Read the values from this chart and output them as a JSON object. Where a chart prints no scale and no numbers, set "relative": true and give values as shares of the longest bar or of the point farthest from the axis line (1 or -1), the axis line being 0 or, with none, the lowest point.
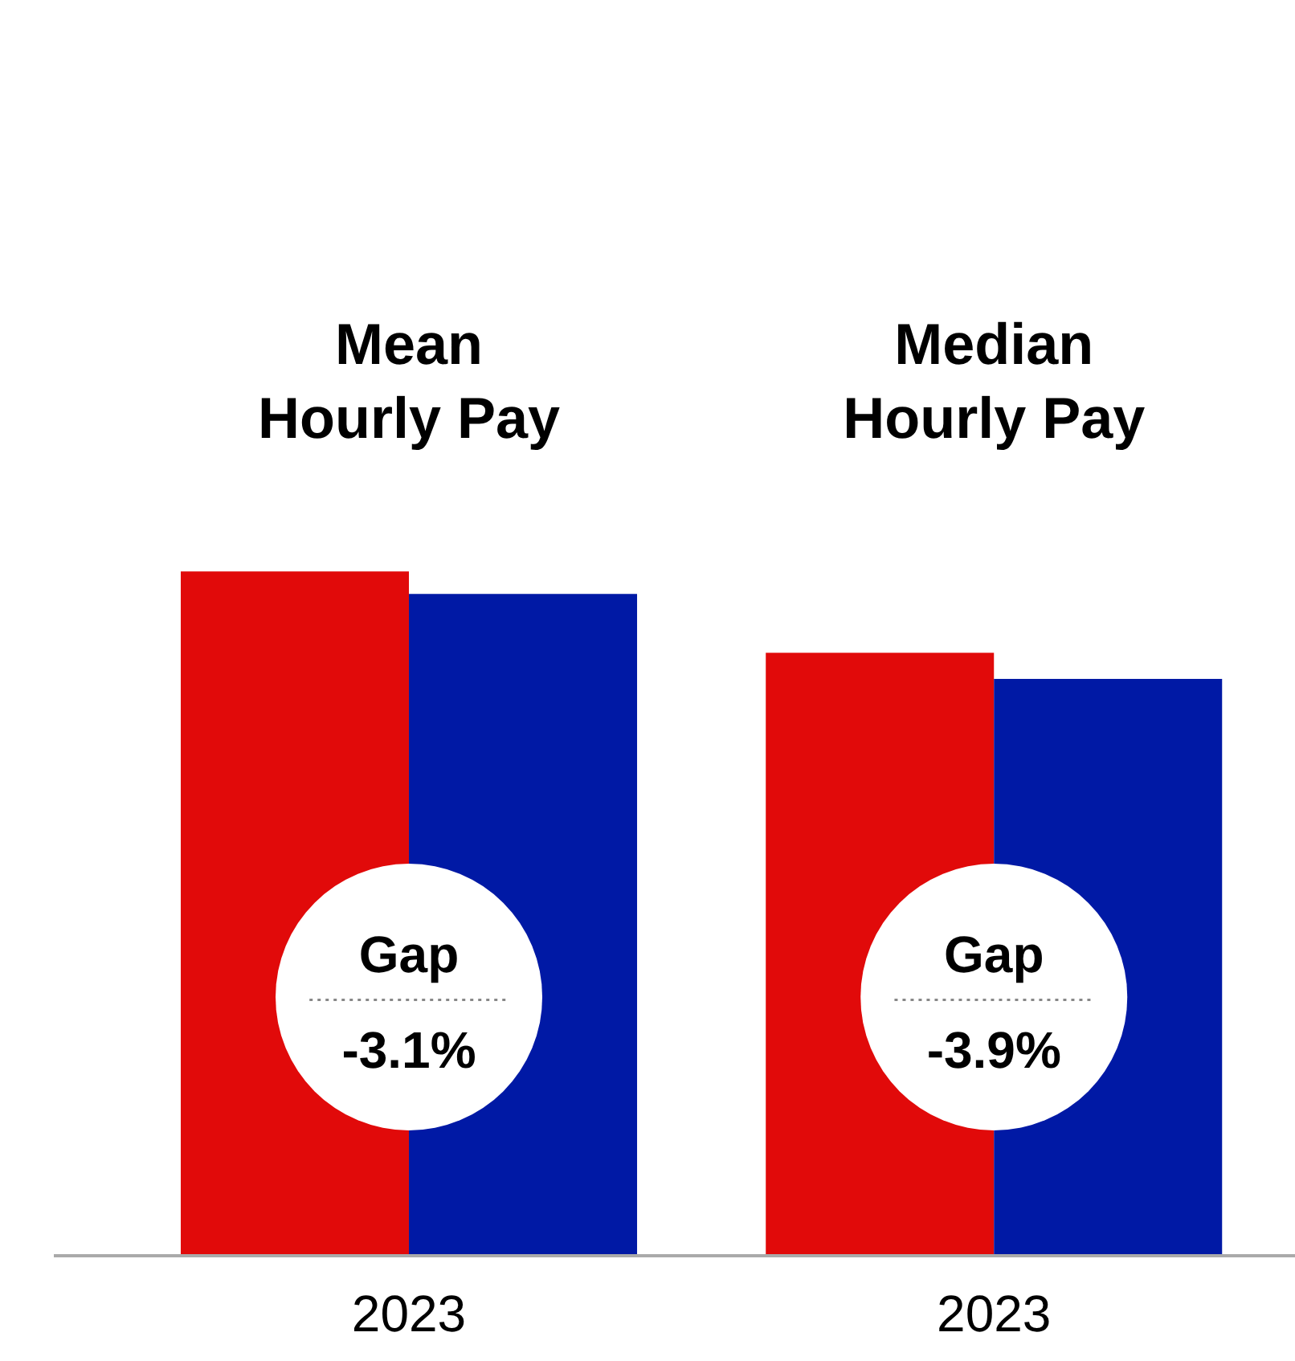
{
  "chart_data": {
    "type": "bar",
    "relative": true,
    "categories": [
      "2023",
      "2023"
    ],
    "series": [
      {
        "color": "#e10a0a",
        "values": [
          1,
          0.881
        ]
      },
      {
        "color": "#0019a5",
        "values": [
          0.967,
          0.843
        ]
      }
    ],
    "annotations": [
      "Mean\nHourly Pay",
      "Median\nHourly Pay",
      "Gap\n-3.1%",
      "Gap\n-3.9%"
    ]
  }
}
